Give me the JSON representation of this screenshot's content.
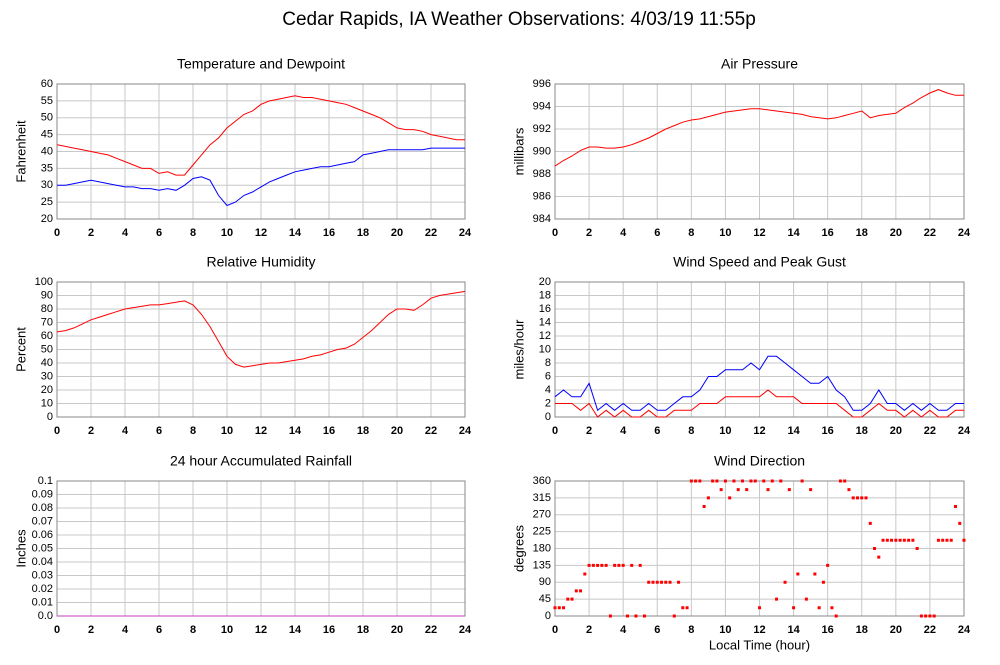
{
  "title": "Cedar Rapids, IA Weather Observations: 4/03/19 11:55p",
  "chart_data": [
    {
      "type": "line",
      "title": "Temperature and Dewpoint",
      "y_label": "Fahrenheit",
      "x": [
        0,
        0.5,
        1,
        1.5,
        2,
        2.5,
        3,
        3.5,
        4,
        4.5,
        5,
        5.5,
        6,
        6.5,
        7,
        7.5,
        8,
        8.5,
        9,
        9.5,
        10,
        10.5,
        11,
        11.5,
        12,
        12.5,
        13,
        13.5,
        14,
        14.5,
        15,
        15.5,
        16,
        16.5,
        17,
        17.5,
        18,
        18.5,
        19,
        19.5,
        20,
        20.5,
        21,
        21.5,
        22,
        22.5,
        23,
        23.5,
        24
      ],
      "series": [
        {
          "color": "#ff0000",
          "values": [
            42,
            41.5,
            41,
            40.5,
            40,
            39.5,
            39,
            38,
            37,
            36,
            35,
            35,
            33.5,
            34,
            33,
            33,
            36,
            39,
            42,
            44,
            47,
            49,
            51,
            52,
            54,
            55,
            55.5,
            56,
            56.5,
            56,
            56,
            55.5,
            55,
            54.5,
            54,
            53,
            52,
            51,
            50,
            48.5,
            47,
            46.5,
            46.5,
            46,
            45,
            44.5,
            44,
            43.5,
            43.5
          ]
        },
        {
          "color": "#0000ff",
          "values": [
            30,
            30,
            30.5,
            31,
            31.5,
            31,
            30.5,
            30,
            29.5,
            29.5,
            29,
            29,
            28.5,
            29,
            28.5,
            30,
            32,
            32.5,
            31.5,
            27,
            24,
            25,
            27,
            28,
            29.5,
            31,
            32,
            33,
            34,
            34.5,
            35,
            35.5,
            35.5,
            36,
            36.5,
            37,
            39,
            39.5,
            40,
            40.5,
            40.5,
            40.5,
            40.5,
            40.5,
            41,
            41,
            41,
            41,
            41
          ]
        }
      ],
      "xlim": [
        0,
        24
      ],
      "xticks": [
        0,
        2,
        4,
        6,
        8,
        10,
        12,
        14,
        16,
        18,
        20,
        22,
        24
      ],
      "ylim": [
        20,
        60
      ],
      "yticks": [
        20,
        25,
        30,
        35,
        40,
        45,
        50,
        55,
        60
      ],
      "grid": true
    },
    {
      "type": "line",
      "title": "Air Pressure",
      "y_label": "millibars",
      "x": [
        0,
        0.5,
        1,
        1.5,
        2,
        2.5,
        3,
        3.5,
        4,
        4.5,
        5,
        5.5,
        6,
        6.5,
        7,
        7.5,
        8,
        8.5,
        9,
        9.5,
        10,
        10.5,
        11,
        11.5,
        12,
        12.5,
        13,
        13.5,
        14,
        14.5,
        15,
        15.5,
        16,
        16.5,
        17,
        17.5,
        18,
        18.5,
        19,
        19.5,
        20,
        20.5,
        21,
        21.5,
        22,
        22.5,
        23,
        23.5,
        24
      ],
      "series": [
        {
          "color": "#ff0000",
          "values": [
            988.7,
            989.2,
            989.6,
            990.1,
            990.4,
            990.4,
            990.3,
            990.3,
            990.4,
            990.6,
            990.9,
            991.2,
            991.6,
            992.0,
            992.3,
            992.6,
            992.8,
            992.9,
            993.1,
            993.3,
            993.5,
            993.6,
            993.7,
            993.8,
            993.8,
            993.7,
            993.6,
            993.5,
            993.4,
            993.3,
            993.1,
            993.0,
            992.9,
            993.0,
            993.2,
            993.4,
            993.6,
            993.0,
            993.2,
            993.3,
            993.4,
            993.9,
            994.3,
            994.8,
            995.2,
            995.5,
            995.2,
            995.0,
            995.0
          ]
        }
      ],
      "xlim": [
        0,
        24
      ],
      "xticks": [
        0,
        2,
        4,
        6,
        8,
        10,
        12,
        14,
        16,
        18,
        20,
        22,
        24
      ],
      "ylim": [
        984,
        996
      ],
      "yticks": [
        984,
        986,
        988,
        990,
        992,
        994,
        996
      ],
      "grid": true
    },
    {
      "type": "line",
      "title": "Relative Humidity",
      "y_label": "Percent",
      "x": [
        0,
        0.5,
        1,
        1.5,
        2,
        2.5,
        3,
        3.5,
        4,
        4.5,
        5,
        5.5,
        6,
        6.5,
        7,
        7.5,
        8,
        8.5,
        9,
        9.5,
        10,
        10.5,
        11,
        11.5,
        12,
        12.5,
        13,
        13.5,
        14,
        14.5,
        15,
        15.5,
        16,
        16.5,
        17,
        17.5,
        18,
        18.5,
        19,
        19.5,
        20,
        20.5,
        21,
        21.5,
        22,
        22.5,
        23,
        23.5,
        24
      ],
      "series": [
        {
          "color": "#ff0000",
          "values": [
            63,
            64,
            66,
            69,
            72,
            74,
            76,
            78,
            80,
            81,
            82,
            83,
            83,
            84,
            85,
            86,
            83,
            76,
            67,
            56,
            45,
            39,
            37,
            38,
            39,
            40,
            40,
            41,
            42,
            43,
            45,
            46,
            48,
            50,
            51,
            54,
            59,
            64,
            70,
            76,
            80,
            80,
            79,
            83,
            88,
            90,
            91,
            92,
            93
          ]
        }
      ],
      "xlim": [
        0,
        24
      ],
      "xticks": [
        0,
        2,
        4,
        6,
        8,
        10,
        12,
        14,
        16,
        18,
        20,
        22,
        24
      ],
      "ylim": [
        0,
        100
      ],
      "yticks": [
        0,
        10,
        20,
        30,
        40,
        50,
        60,
        70,
        80,
        90,
        100
      ],
      "grid": true
    },
    {
      "type": "line",
      "title": "Wind Speed and Peak Gust",
      "y_label": "miles/hour",
      "x": [
        0,
        0.5,
        1,
        1.5,
        2,
        2.5,
        3,
        3.5,
        4,
        4.5,
        5,
        5.5,
        6,
        6.5,
        7,
        7.5,
        8,
        8.5,
        9,
        9.5,
        10,
        10.5,
        11,
        11.5,
        12,
        12.5,
        13,
        13.5,
        14,
        14.5,
        15,
        15.5,
        16,
        16.5,
        17,
        17.5,
        18,
        18.5,
        19,
        19.5,
        20,
        20.5,
        21,
        21.5,
        22,
        22.5,
        23,
        23.5,
        24
      ],
      "series": [
        {
          "color": "#0000ff",
          "values": [
            3,
            4,
            3,
            3,
            5,
            1,
            2,
            1,
            2,
            1,
            1,
            2,
            1,
            1,
            2,
            3,
            3,
            4,
            6,
            6,
            7,
            7,
            7,
            8,
            7,
            9,
            9,
            8,
            7,
            6,
            5,
            5,
            6,
            4,
            3,
            1,
            1,
            2,
            4,
            2,
            2,
            1,
            2,
            1,
            2,
            1,
            1,
            2,
            2
          ]
        },
        {
          "color": "#ff0000",
          "values": [
            2,
            2,
            2,
            1,
            2,
            0,
            1,
            0,
            1,
            0,
            0,
            1,
            0,
            0,
            1,
            1,
            1,
            2,
            2,
            2,
            3,
            3,
            3,
            3,
            3,
            4,
            3,
            3,
            3,
            2,
            2,
            2,
            2,
            2,
            1,
            0,
            0,
            1,
            2,
            1,
            1,
            0,
            1,
            0,
            1,
            0,
            0,
            1,
            1
          ]
        }
      ],
      "xlim": [
        0,
        24
      ],
      "xticks": [
        0,
        2,
        4,
        6,
        8,
        10,
        12,
        14,
        16,
        18,
        20,
        22,
        24
      ],
      "ylim": [
        0,
        20
      ],
      "yticks": [
        0,
        2,
        4,
        6,
        8,
        10,
        12,
        14,
        16,
        18,
        20
      ],
      "grid": true
    },
    {
      "type": "line",
      "title": "24 hour Accumulated Rainfall",
      "y_label": "Inches",
      "x": [
        0,
        24
      ],
      "series": [
        {
          "color": "#c040c0",
          "values": [
            0,
            0
          ]
        }
      ],
      "xlim": [
        0,
        24
      ],
      "xticks": [
        0,
        2,
        4,
        6,
        8,
        10,
        12,
        14,
        16,
        18,
        20,
        22,
        24
      ],
      "ylim": [
        0,
        0.1
      ],
      "yticks": [
        {
          "value": 0,
          "label": "0.0"
        },
        0.01,
        0.02,
        0.03,
        0.04,
        0.05,
        0.06,
        0.07,
        0.08,
        0.09,
        {
          "value": 0.1,
          "label": "0.1"
        }
      ],
      "grid": true
    },
    {
      "type": "scatter",
      "title": "Wind Direction",
      "y_label": "degrees",
      "x_label": "Local Time (hour)",
      "x": [
        0,
        0.25,
        0.5,
        0.75,
        1,
        1.25,
        1.5,
        1.75,
        2,
        2.25,
        2.5,
        2.75,
        3,
        3.25,
        3.5,
        3.75,
        4,
        4.25,
        4.5,
        4.75,
        5,
        5.25,
        5.5,
        5.75,
        6,
        6.25,
        6.5,
        6.75,
        7,
        7.25,
        7.5,
        7.75,
        8,
        8.25,
        8.5,
        8.75,
        9,
        9.25,
        9.5,
        9.75,
        10,
        10.25,
        10.5,
        10.75,
        11,
        11.25,
        11.5,
        11.75,
        12,
        12.25,
        12.5,
        12.75,
        13,
        13.25,
        13.5,
        13.75,
        14,
        14.25,
        14.5,
        14.75,
        15,
        15.25,
        15.5,
        15.75,
        16,
        16.25,
        16.5,
        16.75,
        17,
        17.25,
        17.5,
        17.75,
        18,
        18.25,
        18.5,
        18.75,
        19,
        19.25,
        19.5,
        19.75,
        20,
        20.25,
        20.5,
        20.75,
        21,
        21.25,
        21.5,
        21.75,
        22,
        22.25,
        22.5,
        22.75,
        23,
        23.25,
        23.5,
        23.75,
        24
      ],
      "series": [
        {
          "color": "#ff0000",
          "values": [
            22,
            22,
            22,
            45,
            45,
            67,
            67,
            112,
            135,
            135,
            135,
            135,
            135,
            0,
            135,
            135,
            135,
            0,
            135,
            0,
            135,
            0,
            90,
            90,
            90,
            90,
            90,
            90,
            0,
            90,
            22,
            22,
            360,
            360,
            360,
            292,
            315,
            360,
            360,
            337,
            360,
            315,
            360,
            337,
            360,
            337,
            360,
            360,
            22,
            360,
            337,
            360,
            45,
            360,
            90,
            337,
            22,
            112,
            360,
            45,
            337,
            112,
            22,
            90,
            135,
            22,
            0,
            360,
            360,
            337,
            315,
            315,
            315,
            315,
            247,
            180,
            157,
            202,
            202,
            202,
            202,
            202,
            202,
            202,
            202,
            180,
            0,
            0,
            0,
            0,
            202,
            202,
            202,
            202,
            292,
            247,
            202
          ]
        }
      ],
      "xlim": [
        0,
        24
      ],
      "xticks": [
        0,
        2,
        4,
        6,
        8,
        10,
        12,
        14,
        16,
        18,
        20,
        22,
        24
      ],
      "ylim": [
        0,
        360
      ],
      "yticks": [
        0,
        45,
        90,
        135,
        180,
        225,
        270,
        315,
        360
      ],
      "grid": true
    }
  ]
}
